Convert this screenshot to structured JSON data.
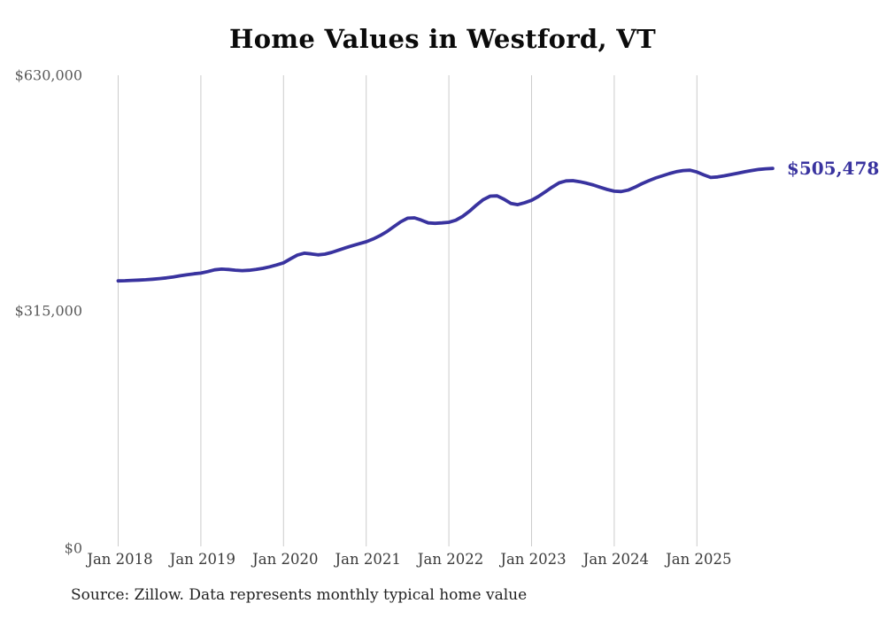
{
  "header": {
    "title": "Home Values in Westford, VT"
  },
  "footer": {
    "source_note": "Source: Zillow. Data represents monthly typical home value"
  },
  "annotation": {
    "end_value_label": "$505,478"
  },
  "colors": {
    "line": "#39339f",
    "end_label_text": "#39339f",
    "grid": "#cccccc",
    "title_text": "#0b0b0b",
    "y_tick_text": "#5a5a5a",
    "x_tick_text": "#3a3a3a",
    "source_text": "#222222",
    "background": "#ffffff"
  },
  "chart_data": {
    "type": "line",
    "title": "Home Values in Westford, VT",
    "xlabel": "",
    "ylabel": "",
    "ylim": [
      0,
      630000
    ],
    "grid": "vertical-only",
    "legend": "none",
    "yticks": [
      {
        "value": 630000,
        "label": "$630,000"
      },
      {
        "value": 315000,
        "label": "$315,000"
      },
      {
        "value": 0,
        "label": "$0"
      }
    ],
    "xtick_labels": [
      "Jan 2018",
      "Jan 2019",
      "Jan 2020",
      "Jan 2021",
      "Jan 2022",
      "Jan 2023",
      "Jan 2024",
      "Jan 2025"
    ],
    "xtick_every_months": 12,
    "end_annotation": "$505,478",
    "latest_value": 505478,
    "series": [
      {
        "name": "Monthly typical home value",
        "x": [
          "2018-01",
          "2018-02",
          "2018-03",
          "2018-04",
          "2018-05",
          "2018-06",
          "2018-07",
          "2018-08",
          "2018-09",
          "2018-10",
          "2018-11",
          "2018-12",
          "2019-01",
          "2019-02",
          "2019-03",
          "2019-04",
          "2019-05",
          "2019-06",
          "2019-07",
          "2019-08",
          "2019-09",
          "2019-10",
          "2019-11",
          "2019-12",
          "2020-01",
          "2020-02",
          "2020-03",
          "2020-04",
          "2020-05",
          "2020-06",
          "2020-07",
          "2020-08",
          "2020-09",
          "2020-10",
          "2020-11",
          "2020-12",
          "2021-01",
          "2021-02",
          "2021-03",
          "2021-04",
          "2021-05",
          "2021-06",
          "2021-07",
          "2021-08",
          "2021-09",
          "2021-10",
          "2021-11",
          "2021-12",
          "2022-01",
          "2022-02",
          "2022-03",
          "2022-04",
          "2022-05",
          "2022-06",
          "2022-07",
          "2022-08",
          "2022-09",
          "2022-10",
          "2022-11",
          "2022-12",
          "2023-01",
          "2023-02",
          "2023-03",
          "2023-04",
          "2023-05",
          "2023-06",
          "2023-07",
          "2023-08",
          "2023-09",
          "2023-10",
          "2023-11",
          "2023-12",
          "2024-01",
          "2024-02",
          "2024-03",
          "2024-04",
          "2024-05",
          "2024-06",
          "2024-07",
          "2024-08",
          "2024-09",
          "2024-10",
          "2024-11",
          "2024-12",
          "2025-01",
          "2025-02",
          "2025-03",
          "2025-04",
          "2025-05",
          "2025-06",
          "2025-07",
          "2025-08",
          "2025-09",
          "2025-10",
          "2025-11",
          "2025-12"
        ],
        "values": [
          355000,
          355300,
          355700,
          356100,
          356600,
          357300,
          358100,
          359100,
          360400,
          361900,
          363300,
          364500,
          365500,
          367500,
          369800,
          370800,
          370300,
          369300,
          368800,
          369200,
          370300,
          371900,
          373900,
          376300,
          379200,
          384500,
          389500,
          392100,
          391200,
          389900,
          390800,
          393100,
          396200,
          399300,
          402200,
          404800,
          407400,
          411000,
          415500,
          421000,
          427500,
          434000,
          438900,
          439300,
          436300,
          432600,
          432000,
          432600,
          433400,
          436200,
          441300,
          448400,
          456400,
          463700,
          468300,
          468700,
          464200,
          458700,
          457000,
          459600,
          462800,
          468000,
          474100,
          480600,
          486100,
          488700,
          489100,
          487600,
          485600,
          483100,
          480100,
          477200,
          475000,
          474500,
          476400,
          480300,
          484900,
          489000,
          492600,
          495600,
          498500,
          501000,
          502600,
          503100,
          500700,
          496800,
          493400,
          494000,
          495600,
          497400,
          499200,
          501000,
          502700,
          504100,
          505000,
          505478
        ]
      }
    ],
    "source": "Source: Zillow. Data represents monthly typical home value"
  }
}
